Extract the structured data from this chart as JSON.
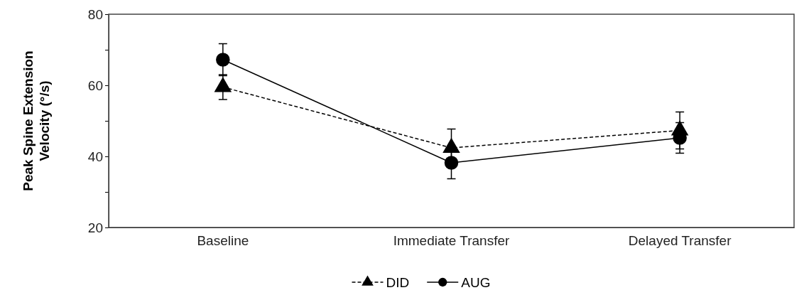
{
  "chart_data": {
    "type": "line",
    "ylabel": "Peak Spine Extension Velocity (°/s)",
    "categories": [
      "Baseline",
      "Immediate Transfer",
      "Delayed Transfer"
    ],
    "ylim": [
      20,
      80
    ],
    "yticks": [
      20,
      {
        "value": 30,
        "label": null
      },
      40,
      {
        "value": 50,
        "label": null
      },
      60,
      {
        "value": 70,
        "label": null
      },
      80
    ],
    "legend": "bottom",
    "series": [
      {
        "name": "DID",
        "color": "#000000",
        "values": [
          59.5,
          42.4,
          47.3
        ],
        "errors": [
          3.5,
          5.3,
          5.2
        ],
        "marker": "triangle",
        "line_style": "dashed"
      },
      {
        "name": "AUG",
        "color": "#000000",
        "values": [
          67.2,
          38.2,
          45.2
        ],
        "errors": [
          4.5,
          4.5,
          4.3
        ],
        "marker": "circle",
        "line_style": "solid"
      }
    ]
  }
}
